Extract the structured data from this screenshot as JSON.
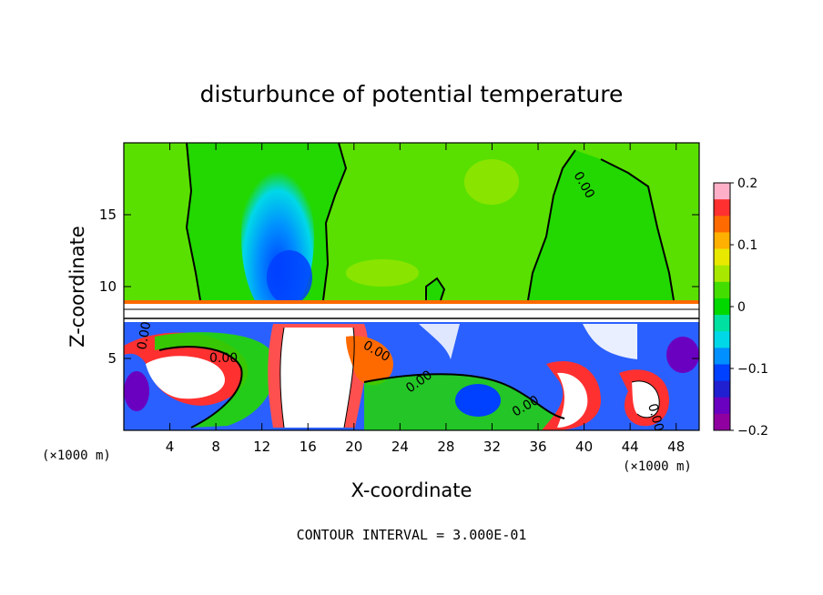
{
  "chart_data": {
    "type": "heatmap",
    "title": "disturbunce of potential temperature",
    "xlabel": "X-coordinate",
    "ylabel": "Z-coordinate",
    "x_unit_left": "(×1000 m)",
    "x_unit_right": "(×1000 m)",
    "xlim": [
      0,
      50
    ],
    "ylim": [
      0,
      20
    ],
    "x_ticks": [
      4,
      8,
      12,
      16,
      20,
      24,
      28,
      32,
      36,
      40,
      44,
      48
    ],
    "y_ticks": [
      5,
      10,
      15
    ],
    "colorbar": {
      "min": -0.2,
      "max": 0.2,
      "ticks": [
        "0.2",
        "0.1",
        "0",
        "−0.1",
        "−0.2"
      ],
      "tick_values": [
        0.2,
        0.1,
        0,
        -0.1,
        -0.2
      ],
      "colors": [
        "#ffb0c8",
        "#ff3030",
        "#ff6a00",
        "#ffb000",
        "#e8e800",
        "#a8e800",
        "#44dd00",
        "#00d800",
        "#00e0a0",
        "#00d8e8",
        "#0090ff",
        "#0040ff",
        "#2020d0",
        "#6a00c0",
        "#9000a0"
      ]
    },
    "contour_labels": [
      "0.00",
      "0.00",
      "0.00",
      "0.00",
      "0.00",
      "0.00",
      "0.00"
    ],
    "footer": "CONTOUR INTERVAL = 3.000E-01"
  }
}
